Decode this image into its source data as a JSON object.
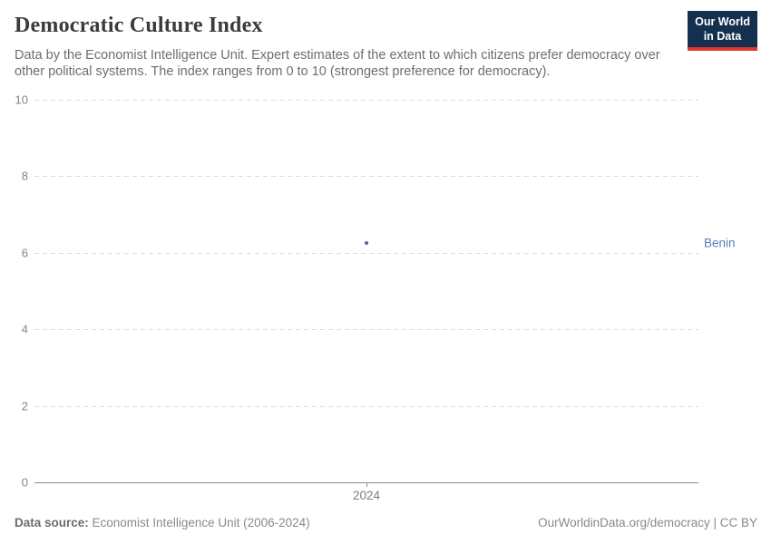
{
  "header": {
    "title": "Democratic Culture Index",
    "subtitle": "Data by the Economist Intelligence Unit. Expert estimates of the extent to which citizens prefer democracy over other political systems. The index ranges from 0 to 10 (strongest preference for democracy)."
  },
  "logo": {
    "line1": "Our World",
    "line2": "in Data",
    "bg_color": "#15304f",
    "accent_color": "#e0362c"
  },
  "chart_data": {
    "type": "scatter",
    "title": "Democratic Culture Index",
    "x": [
      2024
    ],
    "series": [
      {
        "name": "Benin",
        "values": [
          6.25
        ]
      }
    ],
    "xlabel": "",
    "ylabel": "",
    "ylim": [
      0,
      10
    ],
    "yticks": [
      0,
      2,
      4,
      6,
      8,
      10
    ],
    "xticks": [
      "2024"
    ],
    "grid": "horizontal-dashed",
    "legend_position": "right-of-point",
    "point_color": "#4c6a9c",
    "label_color": "#577eb5"
  },
  "footer": {
    "source_label": "Data source:",
    "source_text": " Economist Intelligence Unit (2006-2024)",
    "credit": "OurWorldinData.org/democracy | CC BY"
  }
}
